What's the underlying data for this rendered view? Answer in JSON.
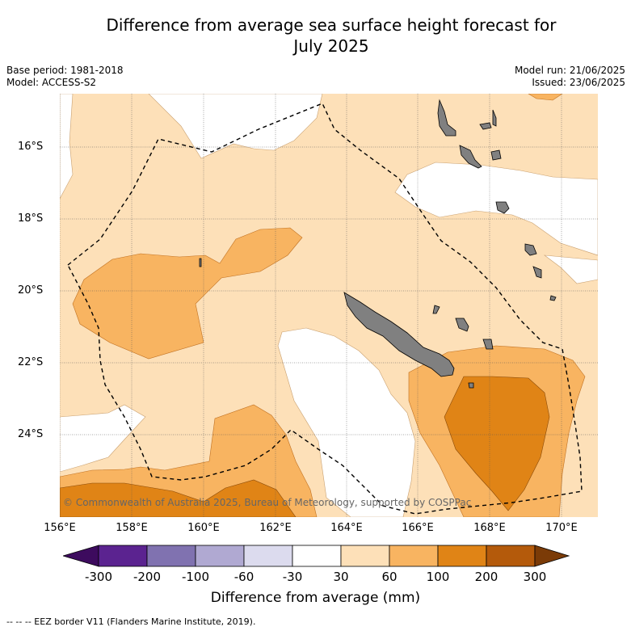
{
  "title_line1": "Difference from average sea surface height forecast for",
  "title_line2": "July 2025",
  "meta": {
    "base_period": "Base period: 1981-2018",
    "model": "Model: ACCESS-S2",
    "model_run": "Model run: 21/06/2025",
    "issued": "Issued: 23/06/2025"
  },
  "credit": "© Commonwealth of Australia 2025, Bureau of Meteorology, supported by COSPPac",
  "lat_labels": [
    "16°S",
    "18°S",
    "20°S",
    "22°S",
    "24°S"
  ],
  "lon_labels": [
    "156°E",
    "158°E",
    "160°E",
    "162°E",
    "164°E",
    "166°E",
    "168°E",
    "170°E"
  ],
  "colorbar": {
    "ticks": [
      "-300",
      "-200",
      "-100",
      "-60",
      "-30",
      "30",
      "60",
      "100",
      "200",
      "300"
    ],
    "colors": [
      "#3d0b5e",
      "#5b2390",
      "#8072b0",
      "#b0a9d2",
      "#dcdbee",
      "#ffffff",
      "#fde0b8",
      "#f8b461",
      "#e08416",
      "#b45a0b",
      "#7b3b07"
    ],
    "title": "Difference from average (mm)"
  },
  "legend_text": "-- -- -- EEZ border V11 (Flanders Marine Institute, 2019).",
  "colors": {
    "level_30_60": "#fde0b8",
    "level_60_100": "#f8b461",
    "level_100_200": "#e08416",
    "no_change": "#ffffff",
    "land": "#808080"
  }
}
